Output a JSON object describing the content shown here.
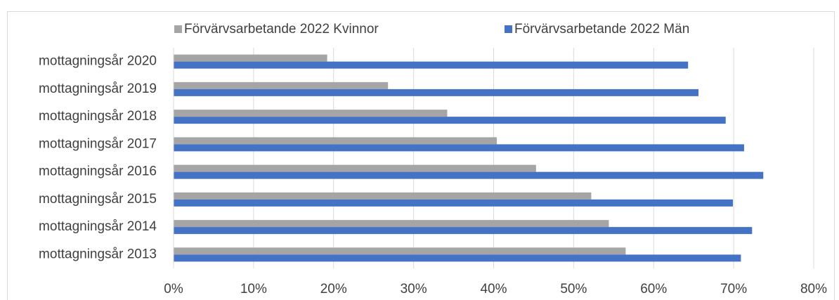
{
  "chart_data": {
    "type": "bar",
    "orientation": "horizontal",
    "categories": [
      "mottagningsår 2020",
      "mottagningsår 2019",
      "mottagningsår 2018",
      "mottagningsår 2017",
      "mottagningsår 2016",
      "mottagningsår 2015",
      "mottagningsår 2014",
      "mottagningsår 2013"
    ],
    "series": [
      {
        "name": "Förvärvsarbetande 2022 Kvinnor",
        "color": "#a5a5a5",
        "values": [
          19.2,
          26.8,
          34.2,
          40.4,
          45.3,
          52.2,
          54.4,
          56.5
        ]
      },
      {
        "name": "Förvärvsarbetande 2022 Män",
        "color": "#4472c4",
        "values": [
          64.3,
          65.6,
          69.0,
          71.3,
          73.7,
          69.9,
          72.3,
          70.9
        ]
      }
    ],
    "xlim": [
      0,
      80
    ],
    "xticks": [
      {
        "value": 0,
        "label": "0%"
      },
      {
        "value": 10,
        "label": "10%"
      },
      {
        "value": 20,
        "label": "20%"
      },
      {
        "value": 30,
        "label": "30%"
      },
      {
        "value": 40,
        "label": "40%"
      },
      {
        "value": 50,
        "label": "50%"
      },
      {
        "value": 60,
        "label": "60%"
      },
      {
        "value": 70,
        "label": "70%"
      },
      {
        "value": 80,
        "label": "80%"
      }
    ],
    "grid": true,
    "legend": "top"
  }
}
